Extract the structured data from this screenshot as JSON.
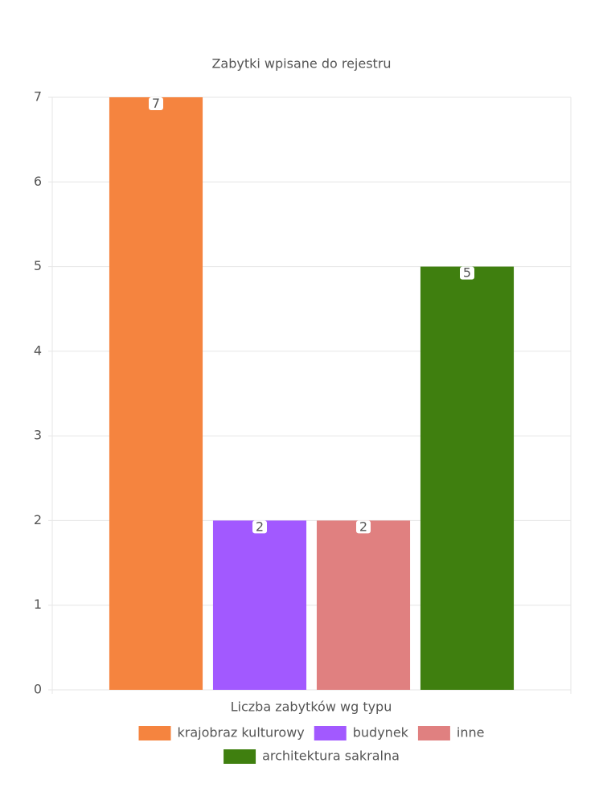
{
  "chart_data": {
    "type": "bar",
    "title": "Zabytki wpisane do rejestru",
    "x_label": "Liczba zabytków wg typu",
    "categories": [
      null
    ],
    "series": [
      {
        "name": "krajobraz kulturowy",
        "color": "#f5843f",
        "values": [
          7
        ]
      },
      {
        "name": "budynek",
        "color": "#a259ff",
        "values": [
          2
        ]
      },
      {
        "name": "inne",
        "color": "#e08080",
        "values": [
          2
        ]
      },
      {
        "name": "architektura sakralna",
        "color": "#3f7f0f",
        "values": [
          5
        ]
      }
    ],
    "ylim": [
      0,
      7
    ],
    "yticks": [
      0,
      1,
      2,
      3,
      4,
      5,
      6,
      7
    ],
    "grid": true,
    "legend": "bottom",
    "data_labels": true
  }
}
